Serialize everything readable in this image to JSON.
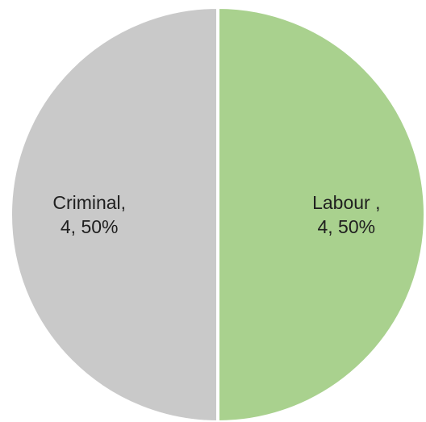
{
  "chart_data": {
    "type": "pie",
    "title": "",
    "start_angle_deg": 0,
    "direction": "clockwise",
    "slices": [
      {
        "category": "Labour",
        "value": 4,
        "percent": "50%",
        "label_line1": "Labour ,",
        "label_line2": "4, 50%",
        "color": "#a9d18e"
      },
      {
        "category": "Criminal",
        "value": 4,
        "percent": "50%",
        "label_line1": "Criminal,",
        "label_line2": "4, 50%",
        "color": "#c9c9c9"
      }
    ],
    "legend": "none",
    "show_data_labels": true
  }
}
